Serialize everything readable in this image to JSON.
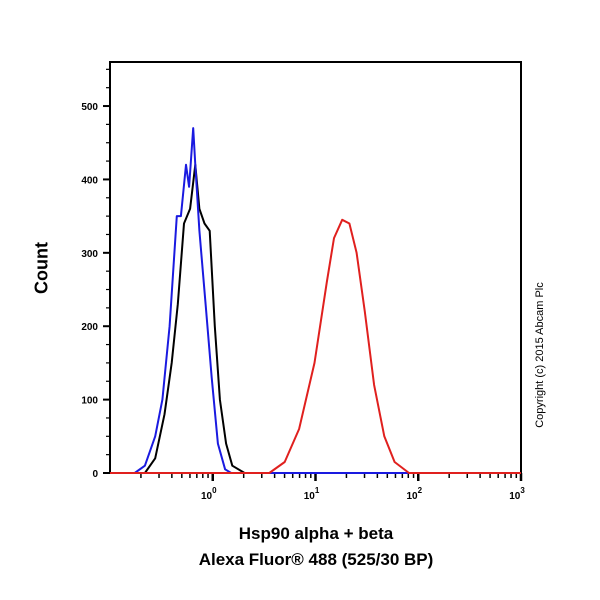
{
  "chart_data": {
    "type": "line",
    "title": "",
    "xlabel": "Hsp90 alpha + beta",
    "xlabel2": "Alexa Fluor® 488 (525/30 BP)",
    "ylabel": "Count",
    "xscale": "log",
    "xlim_log10": [
      -1,
      3
    ],
    "ylim": [
      0,
      560
    ],
    "yticks": [
      0,
      100,
      200,
      300,
      400,
      500
    ],
    "xticks": [
      {
        "base": "10",
        "exp": "0",
        "log": 0
      },
      {
        "base": "10",
        "exp": "1",
        "log": 1
      },
      {
        "base": "10",
        "exp": "2",
        "log": 2
      },
      {
        "base": "10",
        "exp": "3",
        "log": 3
      }
    ],
    "grid": false,
    "series": [
      {
        "name": "black",
        "color": "#000000",
        "x_log10": [
          -1,
          -0.66,
          -0.56,
          -0.47,
          -0.4,
          -0.34,
          -0.28,
          -0.22,
          -0.17,
          -0.13,
          -0.08,
          -0.03,
          0.02,
          0.07,
          0.13,
          0.19,
          0.31,
          3
        ],
        "y": [
          0,
          0,
          20,
          80,
          150,
          230,
          340,
          360,
          420,
          360,
          340,
          330,
          200,
          100,
          40,
          10,
          0,
          0
        ]
      },
      {
        "name": "blue",
        "color": "#1a1ae0",
        "x_log10": [
          -1,
          -0.76,
          -0.66,
          -0.56,
          -0.49,
          -0.42,
          -0.35,
          -0.31,
          -0.26,
          -0.23,
          -0.19,
          -0.17,
          -0.13,
          -0.07,
          -0.01,
          0.05,
          0.12,
          0.18,
          3
        ],
        "y": [
          0,
          0,
          10,
          50,
          100,
          200,
          350,
          350,
          420,
          390,
          470,
          420,
          330,
          230,
          130,
          40,
          5,
          0,
          0
        ]
      },
      {
        "name": "red",
        "color": "#e0201e",
        "x_log10": [
          -1,
          0.55,
          0.7,
          0.84,
          0.99,
          1.11,
          1.18,
          1.26,
          1.33,
          1.4,
          1.48,
          1.57,
          1.67,
          1.77,
          1.91,
          3
        ],
        "y": [
          0,
          0,
          15,
          60,
          150,
          260,
          320,
          345,
          340,
          300,
          220,
          120,
          50,
          15,
          0,
          0
        ]
      }
    ]
  },
  "copyright": "Copyright (c) 2015 Abcam Plc"
}
